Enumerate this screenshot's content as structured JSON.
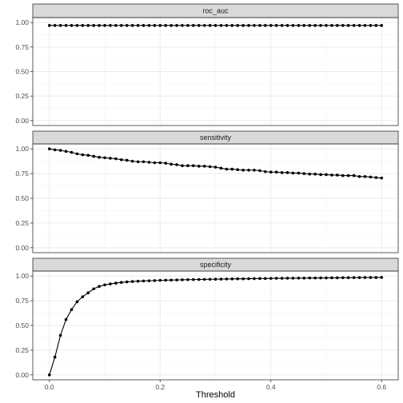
{
  "chart_data": {
    "type": "line",
    "xlabel": "Threshold",
    "x_ticks": [
      "0.0",
      "0.2",
      "0.4",
      "0.6"
    ],
    "x_tick_values": [
      0,
      0.2,
      0.4,
      0.6
    ],
    "xlim": [
      -0.03,
      0.63
    ],
    "y_ticks": [
      "0.00",
      "0.25",
      "0.50",
      "0.75",
      "1.00"
    ],
    "y_tick_values": [
      0,
      0.25,
      0.5,
      0.75,
      1
    ],
    "ylim": [
      -0.05,
      1.05
    ],
    "grid": true,
    "facets": [
      {
        "name": "roc_auc",
        "x": [
          0,
          0.01,
          0.02,
          0.03,
          0.04,
          0.05,
          0.06,
          0.07,
          0.08,
          0.09,
          0.1,
          0.11,
          0.12,
          0.13,
          0.14,
          0.15,
          0.16,
          0.17,
          0.18,
          0.19,
          0.2,
          0.21,
          0.22,
          0.23,
          0.24,
          0.25,
          0.26,
          0.27,
          0.28,
          0.29,
          0.3,
          0.31,
          0.32,
          0.33,
          0.34,
          0.35,
          0.36,
          0.37,
          0.38,
          0.39,
          0.4,
          0.41,
          0.42,
          0.43,
          0.44,
          0.45,
          0.46,
          0.47,
          0.48,
          0.49,
          0.5,
          0.51,
          0.52,
          0.53,
          0.54,
          0.55,
          0.56,
          0.57,
          0.58,
          0.59,
          0.6
        ],
        "values": [
          0.97,
          0.97,
          0.97,
          0.97,
          0.97,
          0.97,
          0.97,
          0.97,
          0.97,
          0.97,
          0.97,
          0.97,
          0.97,
          0.97,
          0.97,
          0.97,
          0.97,
          0.97,
          0.97,
          0.97,
          0.97,
          0.97,
          0.97,
          0.97,
          0.97,
          0.97,
          0.97,
          0.97,
          0.97,
          0.97,
          0.97,
          0.97,
          0.97,
          0.97,
          0.97,
          0.97,
          0.97,
          0.97,
          0.97,
          0.97,
          0.97,
          0.97,
          0.97,
          0.97,
          0.97,
          0.97,
          0.97,
          0.97,
          0.97,
          0.97,
          0.97,
          0.97,
          0.97,
          0.97,
          0.97,
          0.97,
          0.97,
          0.97,
          0.97,
          0.97,
          0.97
        ]
      },
      {
        "name": "sensitivity",
        "x": [
          0,
          0.01,
          0.02,
          0.03,
          0.04,
          0.05,
          0.06,
          0.07,
          0.08,
          0.09,
          0.1,
          0.11,
          0.12,
          0.13,
          0.14,
          0.15,
          0.16,
          0.17,
          0.18,
          0.19,
          0.2,
          0.21,
          0.22,
          0.23,
          0.24,
          0.25,
          0.26,
          0.27,
          0.28,
          0.29,
          0.3,
          0.31,
          0.32,
          0.33,
          0.34,
          0.35,
          0.36,
          0.37,
          0.38,
          0.39,
          0.4,
          0.41,
          0.42,
          0.43,
          0.44,
          0.45,
          0.46,
          0.47,
          0.48,
          0.49,
          0.5,
          0.51,
          0.52,
          0.53,
          0.54,
          0.55,
          0.56,
          0.57,
          0.58,
          0.59,
          0.6
        ],
        "values": [
          1.0,
          0.99,
          0.985,
          0.975,
          0.965,
          0.95,
          0.94,
          0.935,
          0.925,
          0.915,
          0.91,
          0.905,
          0.9,
          0.89,
          0.885,
          0.875,
          0.87,
          0.87,
          0.865,
          0.86,
          0.86,
          0.855,
          0.845,
          0.84,
          0.83,
          0.83,
          0.83,
          0.825,
          0.825,
          0.82,
          0.815,
          0.805,
          0.795,
          0.795,
          0.79,
          0.785,
          0.785,
          0.785,
          0.78,
          0.77,
          0.765,
          0.765,
          0.76,
          0.76,
          0.755,
          0.755,
          0.75,
          0.745,
          0.745,
          0.74,
          0.74,
          0.735,
          0.735,
          0.73,
          0.73,
          0.73,
          0.72,
          0.72,
          0.715,
          0.71,
          0.705
        ]
      },
      {
        "name": "specificity",
        "x": [
          0,
          0.01,
          0.02,
          0.03,
          0.04,
          0.05,
          0.06,
          0.07,
          0.08,
          0.09,
          0.1,
          0.11,
          0.12,
          0.13,
          0.14,
          0.15,
          0.16,
          0.17,
          0.18,
          0.19,
          0.2,
          0.21,
          0.22,
          0.23,
          0.24,
          0.25,
          0.26,
          0.27,
          0.28,
          0.29,
          0.3,
          0.31,
          0.32,
          0.33,
          0.34,
          0.35,
          0.36,
          0.37,
          0.38,
          0.39,
          0.4,
          0.41,
          0.42,
          0.43,
          0.44,
          0.45,
          0.46,
          0.47,
          0.48,
          0.49,
          0.5,
          0.51,
          0.52,
          0.53,
          0.54,
          0.55,
          0.56,
          0.57,
          0.58,
          0.59,
          0.6
        ],
        "values": [
          0.0,
          0.18,
          0.4,
          0.56,
          0.66,
          0.74,
          0.79,
          0.83,
          0.87,
          0.895,
          0.91,
          0.92,
          0.928,
          0.935,
          0.94,
          0.944,
          0.947,
          0.95,
          0.952,
          0.954,
          0.956,
          0.958,
          0.959,
          0.96,
          0.962,
          0.963,
          0.964,
          0.965,
          0.966,
          0.967,
          0.968,
          0.969,
          0.97,
          0.971,
          0.972,
          0.972,
          0.973,
          0.974,
          0.975,
          0.975,
          0.976,
          0.977,
          0.977,
          0.978,
          0.978,
          0.979,
          0.979,
          0.98,
          0.98,
          0.981,
          0.981,
          0.982,
          0.982,
          0.983,
          0.983,
          0.984,
          0.984,
          0.985,
          0.985,
          0.985,
          0.986
        ]
      }
    ]
  },
  "colors": {
    "strip_fill": "#d9d9d9",
    "frame": "#333333",
    "grid_major": "#ebebeb",
    "grid_minor": "#f5f5f5",
    "line": "#000000",
    "point": "#000000"
  }
}
